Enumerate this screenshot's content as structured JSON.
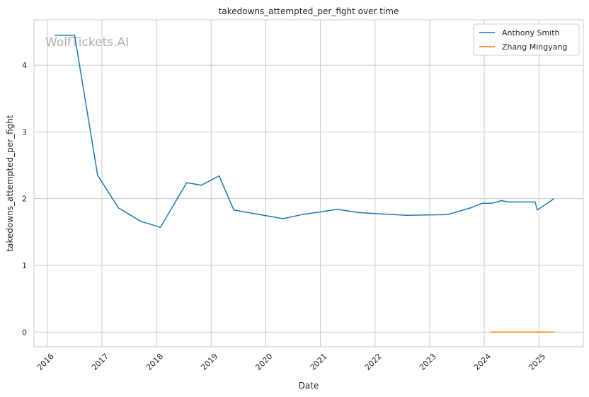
{
  "chart_data": {
    "type": "line",
    "title": "takedowns_attempted_per_fight over time",
    "xlabel": "Date",
    "ylabel": "takedowns_attempted_per_fight",
    "watermark": "WolfTickets.AI",
    "xlim": [
      "2015-10-04",
      "2025-10-25"
    ],
    "ylim": [
      -0.22,
      4.68
    ],
    "grid": true,
    "legend_position": "top-right",
    "x_ticks": [
      "2016",
      "2017",
      "2018",
      "2019",
      "2020",
      "2021",
      "2022",
      "2023",
      "2024",
      "2025"
    ],
    "y_ticks": [
      0,
      1,
      2,
      3,
      4
    ],
    "colors": {
      "Anthony Smith": "#1f77b4",
      "Zhang Mingyang": "#ff7f0e"
    },
    "series": [
      {
        "name": "Anthony Smith",
        "points": [
          [
            "2016-02-20",
            4.45
          ],
          [
            "2016-07-02",
            4.45
          ],
          [
            "2016-12-03",
            2.35
          ],
          [
            "2017-04-22",
            1.86
          ],
          [
            "2017-09-17",
            1.66
          ],
          [
            "2018-01-27",
            1.57
          ],
          [
            "2018-07-22",
            2.24
          ],
          [
            "2018-10-27",
            2.2
          ],
          [
            "2019-02-23",
            2.34
          ],
          [
            "2019-06-01",
            1.83
          ],
          [
            "2020-04-25",
            1.7
          ],
          [
            "2020-08-29",
            1.76
          ],
          [
            "2020-11-28",
            1.79
          ],
          [
            "2021-04-24",
            1.84
          ],
          [
            "2021-09-18",
            1.79
          ],
          [
            "2022-07-30",
            1.75
          ],
          [
            "2023-04-29",
            1.76
          ],
          [
            "2023-09-30",
            1.86
          ],
          [
            "2023-12-16",
            1.93
          ],
          [
            "2024-02-17",
            1.93
          ],
          [
            "2024-04-27",
            1.97
          ],
          [
            "2024-06-08",
            1.95
          ],
          [
            "2024-12-07",
            1.95
          ],
          [
            "2024-12-21",
            1.83
          ],
          [
            "2025-04-12",
            2.0
          ]
        ]
      },
      {
        "name": "Zhang Mingyang",
        "points": [
          [
            "2024-02-10",
            0.0
          ],
          [
            "2025-04-12",
            0.0
          ]
        ]
      }
    ]
  }
}
